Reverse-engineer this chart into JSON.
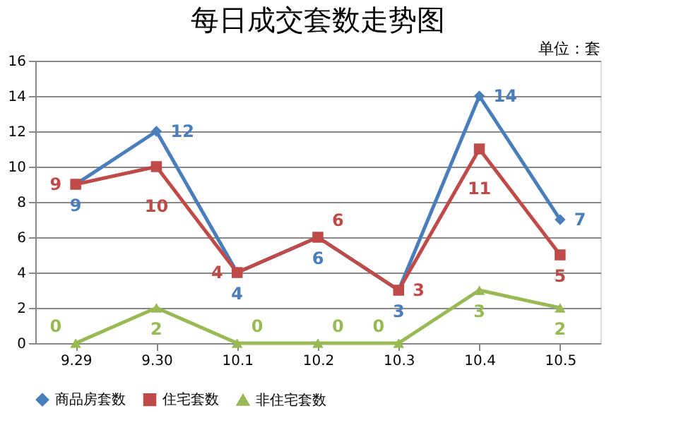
{
  "chart_data": {
    "type": "line",
    "title": "每日成交套数走势图",
    "annotations": [
      "单位：套"
    ],
    "categories": [
      "9.29",
      "9.30",
      "10.1",
      "10.2",
      "10.3",
      "10.4",
      "10.5"
    ],
    "series": [
      {
        "name": "商品房套数",
        "color": "#4a7ebb",
        "marker": "diamond",
        "values": [
          9,
          12,
          4,
          6,
          3,
          14,
          7
        ]
      },
      {
        "name": "住宅套数",
        "color": "#be4b48",
        "marker": "square",
        "values": [
          9,
          10,
          4,
          6,
          3,
          11,
          5
        ]
      },
      {
        "name": "非住宅套数",
        "color": "#98b954",
        "marker": "triangle",
        "values": [
          0,
          2,
          0,
          0,
          0,
          3,
          2
        ]
      }
    ],
    "ylim": [
      0,
      16
    ],
    "yticks": [
      0,
      2,
      4,
      6,
      8,
      10,
      12,
      14,
      16
    ],
    "grid": "y",
    "legend": "bottom",
    "data_labels": true
  }
}
